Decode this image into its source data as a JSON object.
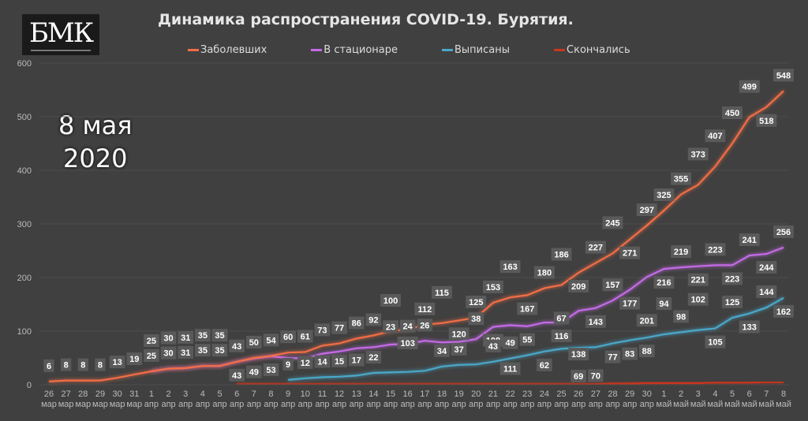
{
  "logo_text": "БМК",
  "date_caption": {
    "line1": "8 мая",
    "line2": "2020"
  },
  "chart_data": {
    "type": "line",
    "title": "Динамика распространения COVID-19. Бурятия.",
    "ylim": [
      0,
      600
    ],
    "yticks": [
      0,
      100,
      200,
      300,
      400,
      500,
      600
    ],
    "grid": true,
    "legend_position": "top",
    "categories": [
      [
        "26",
        "мар"
      ],
      [
        "27",
        "мар"
      ],
      [
        "28",
        "мар"
      ],
      [
        "29",
        "мар"
      ],
      [
        "30",
        "мар"
      ],
      [
        "31",
        "мар"
      ],
      [
        "1",
        "апр"
      ],
      [
        "2",
        "апр"
      ],
      [
        "3",
        "апр"
      ],
      [
        "4",
        "апр"
      ],
      [
        "5",
        "апр"
      ],
      [
        "6",
        "апр"
      ],
      [
        "7",
        "апр"
      ],
      [
        "8",
        "апр"
      ],
      [
        "9",
        "апр"
      ],
      [
        "10",
        "апр"
      ],
      [
        "11",
        "апр"
      ],
      [
        "12",
        "апр"
      ],
      [
        "13",
        "апр"
      ],
      [
        "14",
        "апр"
      ],
      [
        "15",
        "апр"
      ],
      [
        "16",
        "апр"
      ],
      [
        "17",
        "апр"
      ],
      [
        "18",
        "апр"
      ],
      [
        "19",
        "апр"
      ],
      [
        "20",
        "апр"
      ],
      [
        "21",
        "апр"
      ],
      [
        "22",
        "апр"
      ],
      [
        "23",
        "апр"
      ],
      [
        "24",
        "апр"
      ],
      [
        "25",
        "апр"
      ],
      [
        "26",
        "апр"
      ],
      [
        "27",
        "апр"
      ],
      [
        "28",
        "апр"
      ],
      [
        "29",
        "апр"
      ],
      [
        "30",
        "апр"
      ],
      [
        "1",
        "май"
      ],
      [
        "2",
        "май"
      ],
      [
        "3",
        "май"
      ],
      [
        "4",
        "май"
      ],
      [
        "5",
        "май"
      ],
      [
        "6",
        "май"
      ],
      [
        "7",
        "май"
      ],
      [
        "8",
        "май"
      ]
    ],
    "series": [
      {
        "name": "Заболевших",
        "color": "#f26d45",
        "labelled": true,
        "label_side": "above",
        "values": [
          6,
          8,
          8,
          8,
          13,
          19,
          25,
          30,
          31,
          35,
          35,
          43,
          50,
          54,
          60,
          61,
          73,
          77,
          86,
          92,
          100,
          103,
          112,
          115,
          120,
          125,
          153,
          163,
          167,
          180,
          186,
          209,
          227,
          245,
          271,
          297,
          325,
          355,
          373,
          407,
          450,
          499,
          518,
          548
        ]
      },
      {
        "name": "В стационаре",
        "color": "#c46ae6",
        "label_side": "below",
        "values": [
          null,
          null,
          null,
          null,
          null,
          null,
          25,
          30,
          31,
          35,
          35,
          43,
          49,
          53,
          50,
          49,
          58,
          62,
          68,
          70,
          75,
          76,
          82,
          79,
          80,
          85,
          108,
          111,
          109,
          116,
          116,
          138,
          143,
          157,
          177,
          201,
          216,
          219,
          221,
          223,
          223,
          241,
          244,
          256
        ],
        "labels": [
          null,
          null,
          null,
          null,
          null,
          null,
          25,
          30,
          31,
          35,
          35,
          43,
          49,
          53,
          null,
          null,
          null,
          null,
          null,
          null,
          null,
          null,
          null,
          null,
          null,
          null,
          108,
          111,
          null,
          null,
          116,
          138,
          143,
          157,
          177,
          201,
          216,
          219,
          221,
          223,
          223,
          241,
          244,
          256
        ]
      },
      {
        "name": "Выписаны",
        "color": "#4aa8c9",
        "label_side": "above",
        "values": [
          null,
          null,
          null,
          null,
          null,
          null,
          null,
          null,
          null,
          null,
          null,
          null,
          null,
          null,
          9,
          12,
          14,
          15,
          17,
          22,
          23,
          24,
          26,
          34,
          37,
          38,
          43,
          49,
          55,
          62,
          67,
          69,
          70,
          77,
          83,
          88,
          94,
          98,
          102,
          105,
          125,
          133,
          144,
          162
        ]
      },
      {
        "name": "Скончались",
        "color": "#c9361e",
        "label_side": "none",
        "values": [
          null,
          null,
          null,
          null,
          null,
          null,
          null,
          null,
          null,
          null,
          null,
          1,
          1,
          1,
          1,
          1,
          1,
          1,
          1,
          1,
          1,
          1,
          1,
          1,
          1,
          1,
          1,
          1,
          1,
          1,
          1,
          1,
          1,
          2,
          2,
          3,
          3,
          3,
          3,
          4,
          4,
          4,
          5,
          5
        ]
      }
    ]
  }
}
